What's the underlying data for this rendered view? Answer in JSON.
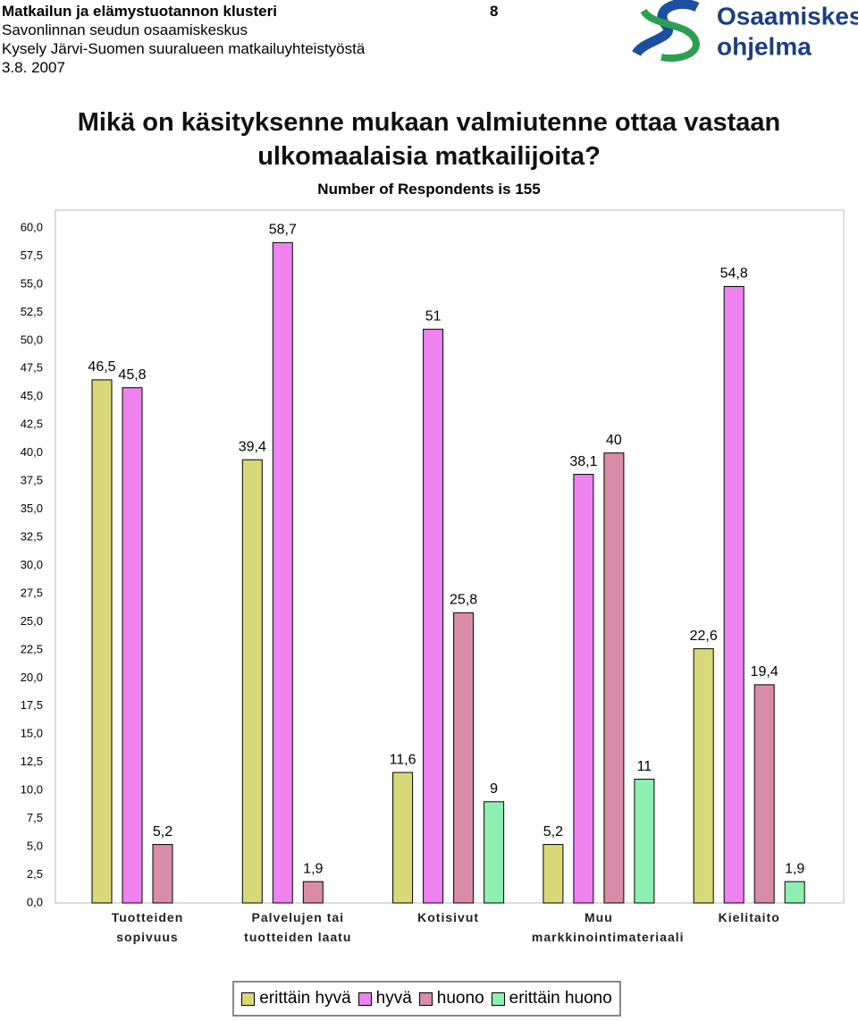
{
  "header": {
    "title": "Matkailun ja elämystuotannon klusteri",
    "lines": [
      "Savonlinnan seudun osaamiskeskus",
      "Kysely Järvi-Suomen suuralueen matkailuyhteistyöstä",
      "3.8. 2007"
    ],
    "page_number": "8",
    "logo": [
      "Osaamiskeskus-",
      "ohjelma"
    ]
  },
  "chart_data": {
    "type": "bar",
    "title": "Mikä on käsityksenne mukaan valmiutenne ottaa vastaan ulkomaalaisia matkailijoita?",
    "subtitle": "Number of Respondents is 155",
    "categories": [
      "Tuotteiden sopivuus",
      "Palvelujen tai tuotteiden laatu",
      "Kotisivut",
      "Muu markkinointimateriaali",
      "Kielitaito"
    ],
    "series": [
      {
        "name": "erittäin hyvä",
        "color": "#d8d878",
        "values": [
          46.5,
          39.4,
          11.6,
          5.2,
          22.6
        ],
        "value_labels": [
          "46,5",
          "39,4",
          "11,6",
          "5,2",
          "22,6"
        ]
      },
      {
        "name": "hyvä",
        "color": "#ee82ee",
        "values": [
          45.8,
          58.7,
          51,
          38.1,
          54.8
        ],
        "value_labels": [
          "45,8",
          "58,7",
          "51",
          "38,1",
          "54,8"
        ]
      },
      {
        "name": "huono",
        "color": "#d98ca8",
        "values": [
          5.2,
          1.9,
          25.8,
          40,
          19.4
        ],
        "value_labels": [
          "5,2",
          "1,9",
          "25,8",
          "40",
          "19,4"
        ]
      },
      {
        "name": "erittäin huono",
        "color": "#8ef0b0",
        "values": [
          null,
          null,
          9,
          11,
          1.9
        ],
        "value_labels": [
          null,
          null,
          "9",
          "11",
          "1,9"
        ]
      }
    ],
    "ylim": [
      0,
      60
    ],
    "yticks": [
      {
        "value": 0,
        "label": "0,0"
      },
      {
        "value": 2.5,
        "label": "2,5"
      },
      {
        "value": 5,
        "label": "5,0"
      },
      {
        "value": 7.5,
        "label": "7,5"
      },
      {
        "value": 10,
        "label": "10,0"
      },
      {
        "value": 12.5,
        "label": "12,5"
      },
      {
        "value": 15,
        "label": "15,0"
      },
      {
        "value": 17.5,
        "label": "17,5"
      },
      {
        "value": 20,
        "label": "20,0"
      },
      {
        "value": 22.5,
        "label": "22,5"
      },
      {
        "value": 25,
        "label": "25,0"
      },
      {
        "value": 27.5,
        "label": "27,5"
      },
      {
        "value": 30,
        "label": "30,0"
      },
      {
        "value": 32.5,
        "label": "32,5"
      },
      {
        "value": 35,
        "label": "35,0"
      },
      {
        "value": 37.5,
        "label": "37,5"
      },
      {
        "value": 40,
        "label": "40,0"
      },
      {
        "value": 42.5,
        "label": "42,5"
      },
      {
        "value": 45,
        "label": "45,0"
      },
      {
        "value": 47.5,
        "label": "47,5"
      },
      {
        "value": 50,
        "label": "50,0"
      },
      {
        "value": 52.5,
        "label": "52,5"
      },
      {
        "value": 55,
        "label": "55,0"
      },
      {
        "value": 57.5,
        "label": "57,5"
      },
      {
        "value": 60,
        "label": "60,0"
      }
    ],
    "grid": false,
    "legend": "bottom"
  }
}
